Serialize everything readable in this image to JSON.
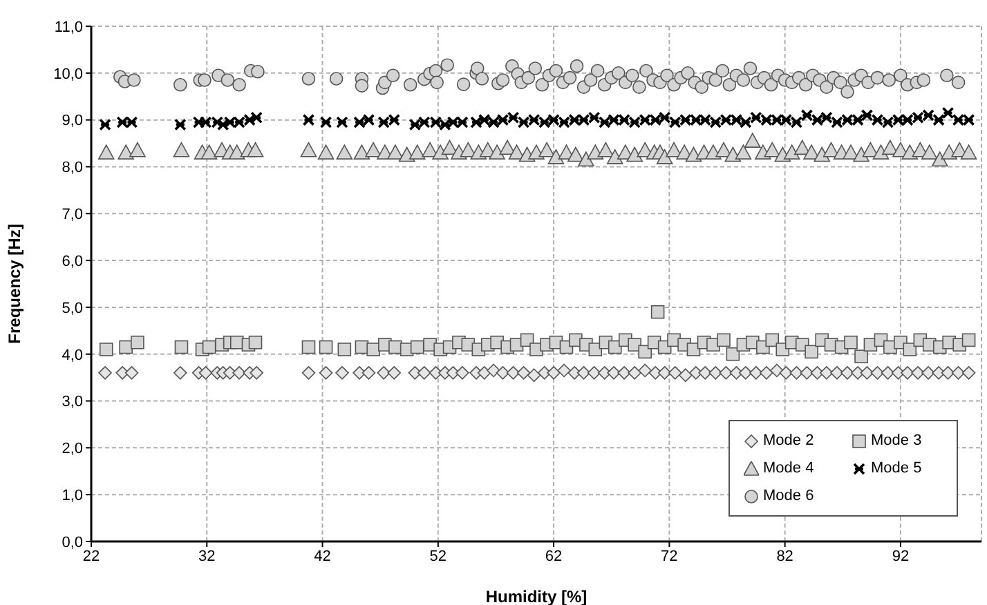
{
  "chart_data": {
    "type": "scatter",
    "xlabel": "Humidity [%]",
    "ylabel": "Frequency [Hz]",
    "xlim": [
      22,
      99
    ],
    "xticks": [
      22,
      32,
      42,
      52,
      62,
      72,
      82,
      92
    ],
    "ylim": [
      0,
      11
    ],
    "yticks": [
      {
        "value": 0,
        "label": "0,0"
      },
      {
        "value": 1,
        "label": "1,0"
      },
      {
        "value": 2,
        "label": "2,0"
      },
      {
        "value": 3,
        "label": "3,0"
      },
      {
        "value": 4,
        "label": "4,0"
      },
      {
        "value": 5,
        "label": "5,0"
      },
      {
        "value": 6,
        "label": "6,0"
      },
      {
        "value": 7,
        "label": "7,0"
      },
      {
        "value": 8,
        "label": "8,0"
      },
      {
        "value": 9,
        "label": "9,0"
      },
      {
        "value": 10,
        "label": "10,0"
      },
      {
        "value": 11,
        "label": "11,0"
      }
    ],
    "grid": true,
    "legend": "bottom right",
    "series": [
      {
        "name": "Mode 2",
        "color": "#e6e6e6",
        "marker": "diamond",
        "x": [
          23.2,
          24.7,
          25.5,
          29.7,
          31.3,
          31.9,
          32.9,
          33.4,
          34.0,
          34.8,
          35.7,
          36.3,
          40.8,
          42.3,
          43.7,
          45.2,
          46.0,
          47.3,
          48.2,
          50.0,
          50.8,
          51.8,
          52.6,
          53.3,
          54.1,
          55.3,
          56.0,
          56.8,
          57.6,
          58.5,
          59.4,
          60.3,
          61.2,
          62.0,
          62.9,
          63.8,
          64.6,
          65.5,
          66.4,
          67.2,
          68.1,
          69.0,
          69.9,
          70.8,
          71.6,
          72.5,
          73.4,
          74.3,
          75.1,
          76.0,
          76.9,
          77.8,
          78.6,
          79.5,
          80.4,
          81.3,
          82.1,
          83.0,
          83.9,
          84.8,
          85.6,
          86.5,
          87.4,
          88.3,
          89.1,
          90.0,
          90.9,
          91.8,
          92.6,
          93.5,
          94.4,
          95.3,
          96.1,
          97.0,
          97.9
        ],
        "values": [
          3.6,
          3.6,
          3.6,
          3.6,
          3.6,
          3.6,
          3.6,
          3.6,
          3.6,
          3.6,
          3.6,
          3.6,
          3.6,
          3.6,
          3.6,
          3.6,
          3.6,
          3.6,
          3.6,
          3.6,
          3.6,
          3.6,
          3.6,
          3.6,
          3.6,
          3.6,
          3.6,
          3.65,
          3.6,
          3.6,
          3.6,
          3.55,
          3.6,
          3.6,
          3.65,
          3.6,
          3.6,
          3.6,
          3.6,
          3.6,
          3.6,
          3.6,
          3.65,
          3.6,
          3.6,
          3.6,
          3.55,
          3.6,
          3.6,
          3.6,
          3.6,
          3.6,
          3.6,
          3.6,
          3.6,
          3.65,
          3.6,
          3.6,
          3.6,
          3.6,
          3.6,
          3.6,
          3.6,
          3.6,
          3.6,
          3.6,
          3.6,
          3.6,
          3.6,
          3.6,
          3.6,
          3.6,
          3.6,
          3.6,
          3.6
        ]
      },
      {
        "name": "Mode 3",
        "color": "#d4d4d4",
        "marker": "square",
        "x": [
          23.3,
          25.0,
          26.0,
          29.8,
          31.6,
          32.2,
          33.3,
          34.0,
          34.6,
          35.6,
          36.2,
          40.8,
          42.3,
          43.9,
          45.4,
          46.4,
          47.4,
          48.3,
          49.3,
          50.2,
          51.3,
          52.2,
          53.0,
          53.8,
          54.6,
          55.5,
          56.3,
          57.1,
          58.0,
          58.8,
          59.7,
          60.5,
          61.4,
          62.2,
          63.1,
          63.9,
          64.8,
          65.6,
          66.5,
          67.3,
          68.2,
          69.0,
          69.9,
          70.7,
          71.0,
          71.6,
          72.4,
          73.3,
          74.1,
          75.0,
          75.8,
          76.7,
          77.5,
          78.4,
          79.2,
          80.1,
          80.9,
          81.8,
          82.6,
          83.5,
          84.3,
          85.2,
          86.0,
          86.9,
          87.7,
          88.6,
          89.4,
          90.3,
          91.1,
          92.0,
          92.8,
          93.7,
          94.5,
          95.4,
          96.2,
          97.1,
          97.9
        ],
        "values": [
          4.1,
          4.15,
          4.25,
          4.15,
          4.1,
          4.15,
          4.2,
          4.25,
          4.25,
          4.2,
          4.25,
          4.15,
          4.15,
          4.1,
          4.15,
          4.1,
          4.2,
          4.15,
          4.1,
          4.15,
          4.2,
          4.1,
          4.15,
          4.25,
          4.2,
          4.1,
          4.2,
          4.25,
          4.15,
          4.2,
          4.3,
          4.1,
          4.2,
          4.25,
          4.15,
          4.3,
          4.2,
          4.1,
          4.25,
          4.15,
          4.3,
          4.2,
          4.05,
          4.25,
          4.9,
          4.15,
          4.3,
          4.2,
          4.1,
          4.25,
          4.2,
          4.3,
          4.0,
          4.2,
          4.25,
          4.15,
          4.3,
          4.1,
          4.25,
          4.2,
          4.05,
          4.3,
          4.2,
          4.15,
          4.25,
          3.95,
          4.2,
          4.3,
          4.15,
          4.25,
          4.1,
          4.3,
          4.2,
          4.15,
          4.25,
          4.2,
          4.3
        ]
      },
      {
        "name": "Mode 4",
        "color": "#d4d4d4",
        "marker": "triangle",
        "x": [
          23.3,
          25.0,
          26.0,
          29.8,
          31.6,
          32.2,
          33.3,
          34.0,
          34.6,
          35.6,
          36.2,
          40.8,
          42.3,
          43.9,
          45.4,
          46.4,
          47.4,
          48.3,
          49.3,
          50.2,
          51.3,
          52.2,
          53.0,
          53.8,
          54.6,
          55.5,
          56.3,
          57.1,
          58.0,
          58.8,
          59.7,
          60.5,
          61.4,
          62.2,
          63.1,
          63.9,
          64.8,
          65.6,
          66.5,
          67.3,
          68.2,
          69.0,
          69.9,
          70.7,
          71.2,
          71.6,
          72.4,
          73.3,
          74.1,
          75.0,
          75.8,
          76.7,
          77.5,
          78.4,
          79.2,
          80.1,
          80.9,
          81.8,
          82.6,
          83.5,
          84.3,
          85.2,
          86.0,
          86.9,
          87.7,
          88.6,
          89.4,
          90.3,
          91.1,
          92.0,
          92.8,
          93.7,
          94.5,
          95.4,
          96.2,
          97.1,
          97.9
        ],
        "values": [
          8.3,
          8.3,
          8.35,
          8.35,
          8.3,
          8.3,
          8.35,
          8.3,
          8.3,
          8.35,
          8.35,
          8.35,
          8.3,
          8.3,
          8.3,
          8.35,
          8.3,
          8.3,
          8.25,
          8.3,
          8.35,
          8.3,
          8.4,
          8.3,
          8.35,
          8.3,
          8.35,
          8.3,
          8.4,
          8.3,
          8.25,
          8.3,
          8.35,
          8.2,
          8.3,
          8.25,
          8.15,
          8.3,
          8.35,
          8.2,
          8.3,
          8.25,
          8.35,
          8.3,
          8.3,
          8.2,
          8.35,
          8.3,
          8.25,
          8.3,
          8.3,
          8.35,
          8.25,
          8.3,
          8.55,
          8.3,
          8.35,
          8.25,
          8.3,
          8.4,
          8.3,
          8.25,
          8.35,
          8.3,
          8.3,
          8.25,
          8.35,
          8.3,
          8.4,
          8.35,
          8.3,
          8.35,
          8.3,
          8.15,
          8.3,
          8.35,
          8.3
        ]
      },
      {
        "name": "Mode 5",
        "color": "#000000",
        "marker": "cross",
        "x": [
          23.2,
          24.7,
          25.5,
          29.7,
          31.3,
          31.9,
          32.9,
          33.4,
          34.0,
          34.8,
          35.7,
          36.3,
          40.8,
          42.3,
          43.7,
          45.2,
          46.0,
          47.3,
          48.2,
          50.0,
          50.8,
          51.8,
          52.6,
          53.3,
          54.1,
          55.3,
          56.0,
          56.8,
          57.6,
          58.5,
          59.4,
          60.3,
          61.2,
          62.0,
          62.9,
          63.8,
          64.6,
          65.5,
          66.4,
          67.2,
          68.1,
          69.0,
          69.9,
          70.8,
          71.6,
          72.5,
          73.4,
          74.3,
          75.1,
          76.0,
          76.9,
          77.8,
          78.6,
          79.5,
          80.4,
          81.3,
          82.1,
          83.0,
          83.9,
          84.8,
          85.6,
          86.5,
          87.4,
          88.3,
          89.1,
          90.0,
          90.9,
          91.8,
          92.6,
          93.5,
          94.4,
          95.3,
          96.1,
          97.0,
          97.9
        ],
        "values": [
          8.9,
          8.95,
          8.95,
          8.9,
          8.95,
          8.95,
          8.95,
          8.9,
          8.95,
          8.95,
          9.0,
          9.05,
          9.0,
          8.95,
          8.95,
          8.95,
          9.0,
          8.95,
          9.0,
          8.9,
          8.95,
          8.95,
          8.9,
          8.95,
          8.95,
          8.95,
          9.0,
          8.95,
          9.0,
          9.05,
          8.95,
          9.0,
          8.95,
          9.0,
          8.95,
          9.0,
          9.0,
          9.05,
          8.95,
          9.0,
          9.0,
          8.95,
          9.0,
          9.0,
          9.05,
          8.95,
          9.0,
          9.0,
          9.0,
          8.95,
          9.0,
          9.0,
          8.95,
          9.05,
          9.0,
          9.0,
          9.0,
          8.95,
          9.1,
          9.0,
          9.05,
          8.95,
          9.0,
          9.0,
          9.1,
          9.0,
          8.95,
          9.0,
          9.0,
          9.05,
          9.1,
          9.0,
          9.15,
          9.0,
          9.0
        ]
      },
      {
        "name": "Mode 6",
        "color": "#d4d4d4",
        "marker": "circle",
        "x": [
          24.5,
          24.9,
          25.7,
          29.7,
          31.4,
          31.8,
          33.0,
          33.8,
          34.8,
          35.8,
          36.4,
          40.8,
          43.2,
          45.4,
          45.4,
          47.2,
          47.4,
          48.1,
          49.6,
          50.8,
          51.3,
          51.8,
          51.9,
          52.8,
          54.2,
          55.3,
          55.4,
          55.8,
          57.2,
          57.6,
          58.4,
          58.9,
          59.2,
          59.8,
          60.4,
          61.0,
          61.6,
          62.2,
          62.8,
          63.4,
          64.0,
          64.6,
          65.2,
          65.8,
          66.4,
          67.0,
          67.6,
          68.2,
          68.8,
          69.4,
          70.0,
          70.6,
          71.2,
          71.8,
          72.4,
          73.0,
          73.6,
          74.2,
          74.8,
          75.4,
          76.0,
          76.6,
          77.2,
          77.8,
          78.4,
          79.0,
          79.6,
          80.2,
          80.8,
          81.4,
          82.0,
          82.6,
          83.2,
          83.8,
          84.4,
          85.0,
          85.6,
          86.2,
          86.8,
          87.4,
          88.0,
          88.6,
          89.2,
          90.0,
          91.0,
          92.0,
          92.6,
          93.4,
          94.0,
          96.0,
          97.0
        ],
        "values": [
          9.92,
          9.82,
          9.85,
          9.75,
          9.85,
          9.85,
          9.95,
          9.85,
          9.75,
          10.05,
          10.03,
          9.88,
          9.88,
          9.88,
          9.73,
          9.68,
          9.8,
          9.95,
          9.75,
          9.87,
          9.99,
          10.05,
          9.8,
          10.17,
          9.76,
          10.0,
          10.1,
          9.88,
          9.78,
          9.85,
          10.15,
          9.98,
          9.8,
          9.9,
          10.1,
          9.75,
          9.95,
          10.05,
          9.8,
          9.9,
          10.15,
          9.7,
          9.85,
          10.05,
          9.75,
          9.9,
          10.0,
          9.8,
          9.95,
          9.7,
          10.05,
          9.85,
          9.8,
          9.95,
          9.75,
          9.9,
          10.0,
          9.8,
          9.7,
          9.9,
          9.85,
          10.05,
          9.75,
          9.95,
          9.85,
          10.1,
          9.8,
          9.9,
          9.75,
          9.95,
          9.85,
          9.8,
          9.9,
          9.75,
          9.95,
          9.85,
          9.7,
          9.9,
          9.8,
          9.6,
          9.85,
          9.95,
          9.8,
          9.9,
          9.85,
          9.95,
          9.75,
          9.8,
          9.85,
          9.95,
          9.8
        ]
      }
    ]
  }
}
